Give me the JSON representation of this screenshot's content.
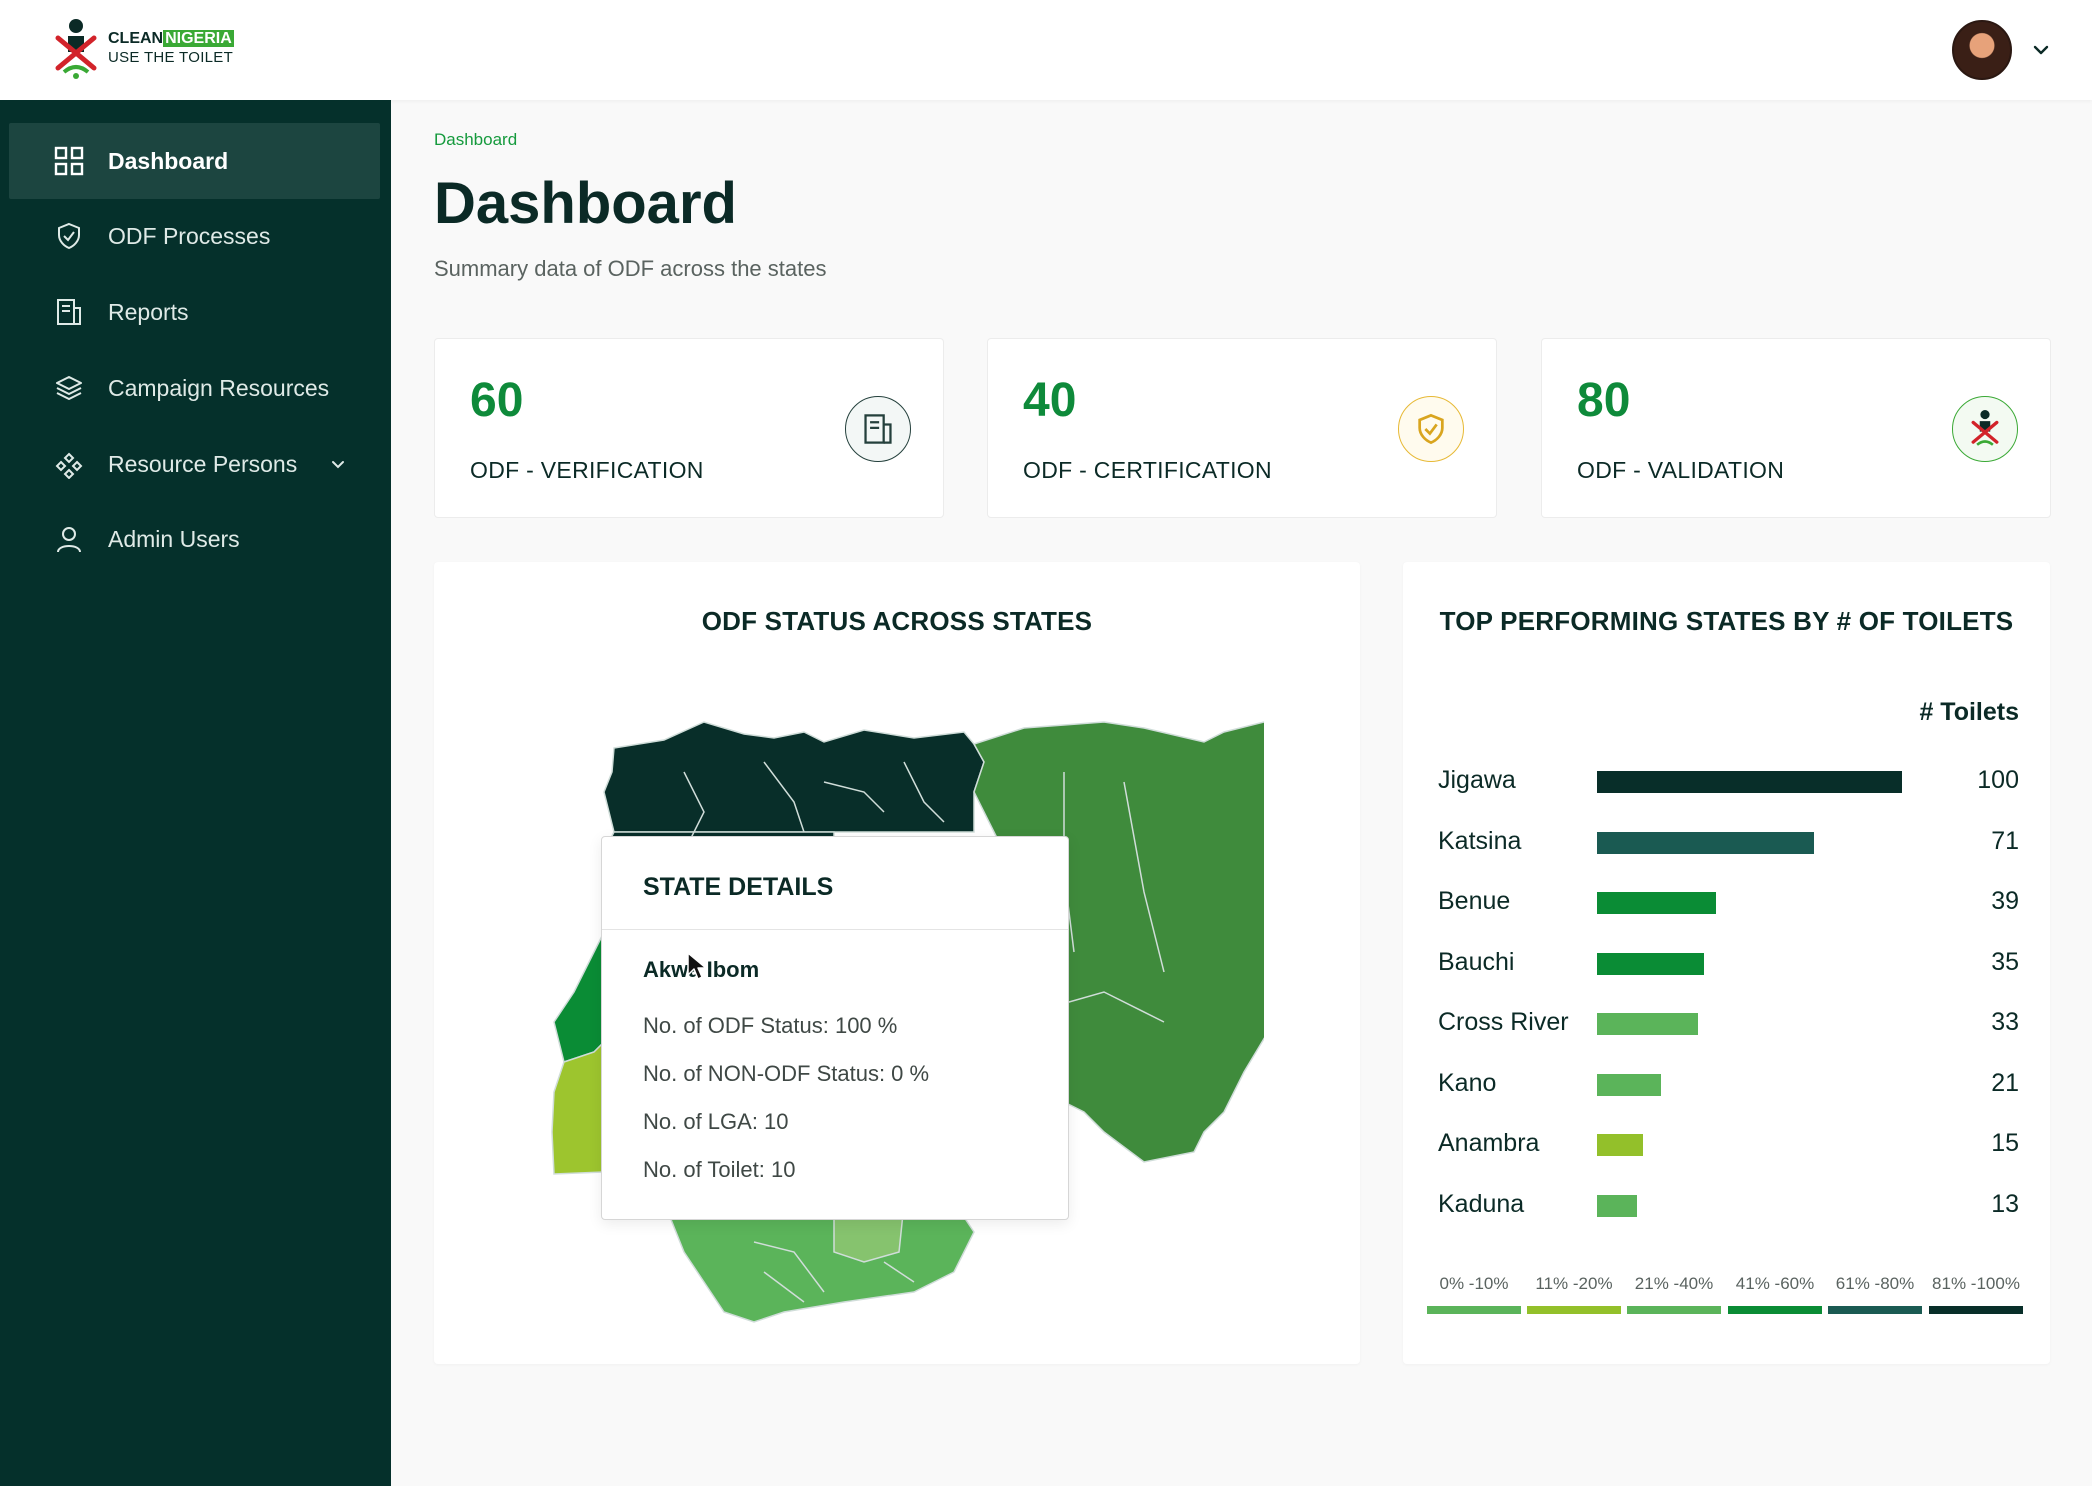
{
  "header": {
    "brand_clean": "CLEAN",
    "brand_nigeria": "NIGERIA",
    "brand_tagline": "USE THE TOILET"
  },
  "sidebar": {
    "items": [
      {
        "label": "Dashboard",
        "icon": "grid-icon",
        "active": true
      },
      {
        "label": "ODF Processes",
        "icon": "shield-icon"
      },
      {
        "label": "Reports",
        "icon": "document-icon"
      },
      {
        "label": "Campaign Resources",
        "icon": "layers-icon"
      },
      {
        "label": "Resource Persons",
        "icon": "network-icon",
        "expandable": true
      },
      {
        "label": "Admin Users",
        "icon": "user-icon"
      }
    ]
  },
  "main": {
    "breadcrumb": "Dashboard",
    "title": "Dashboard",
    "subtitle": "Summary data of ODF across the states"
  },
  "stats": [
    {
      "value": "60",
      "label": "ODF - VERIFICATION",
      "icon": "document-icon"
    },
    {
      "value": "40",
      "label": "ODF - CERTIFICATION",
      "icon": "shield-check-icon"
    },
    {
      "value": "80",
      "label": "ODF - VALIDATION",
      "icon": "logo-icon"
    }
  ],
  "map_panel": {
    "title": "ODF STATUS ACROSS STATES",
    "tooltip": {
      "title": "STATE DETAILS",
      "state": "Akwa Ibom",
      "rows": [
        "No. of ODF Status: 100 %",
        "No. of NON-ODF Status: 0 %",
        "No. of LGA: 10",
        "No. of Toilet: 10"
      ]
    }
  },
  "bar_panel": {
    "title": "TOP PERFORMING STATES BY # OF TOILETS",
    "column_header": "# Toilets",
    "legend": [
      {
        "label": "0% -10%",
        "color": "#5bb45a"
      },
      {
        "label": "11% -20%",
        "color": "#93c02a"
      },
      {
        "label": "21% -40%",
        "color": "#5bb45a"
      },
      {
        "label": "41% -60%",
        "color": "#0a8c35"
      },
      {
        "label": "61% -80%",
        "color": "#1a5a52"
      },
      {
        "label": "81% -100%",
        "color": "#082e29"
      }
    ]
  },
  "chart_data": {
    "type": "bar",
    "orientation": "horizontal",
    "title": "TOP PERFORMING STATES BY # OF TOILETS",
    "categories": [
      "Jigawa",
      "Katsina",
      "Benue",
      "Bauchi",
      "Cross River",
      "Kano",
      "Anambra",
      "Kaduna"
    ],
    "values": [
      100,
      71,
      39,
      35,
      33,
      21,
      15,
      13
    ],
    "value_label": "# Toilets",
    "bar_colors": [
      "#082e29",
      "#1a5a52",
      "#0a8c35",
      "#0a8c35",
      "#5bb45a",
      "#5bb45a",
      "#93c02a",
      "#5bb45a"
    ],
    "xlim": [
      0,
      100
    ]
  }
}
